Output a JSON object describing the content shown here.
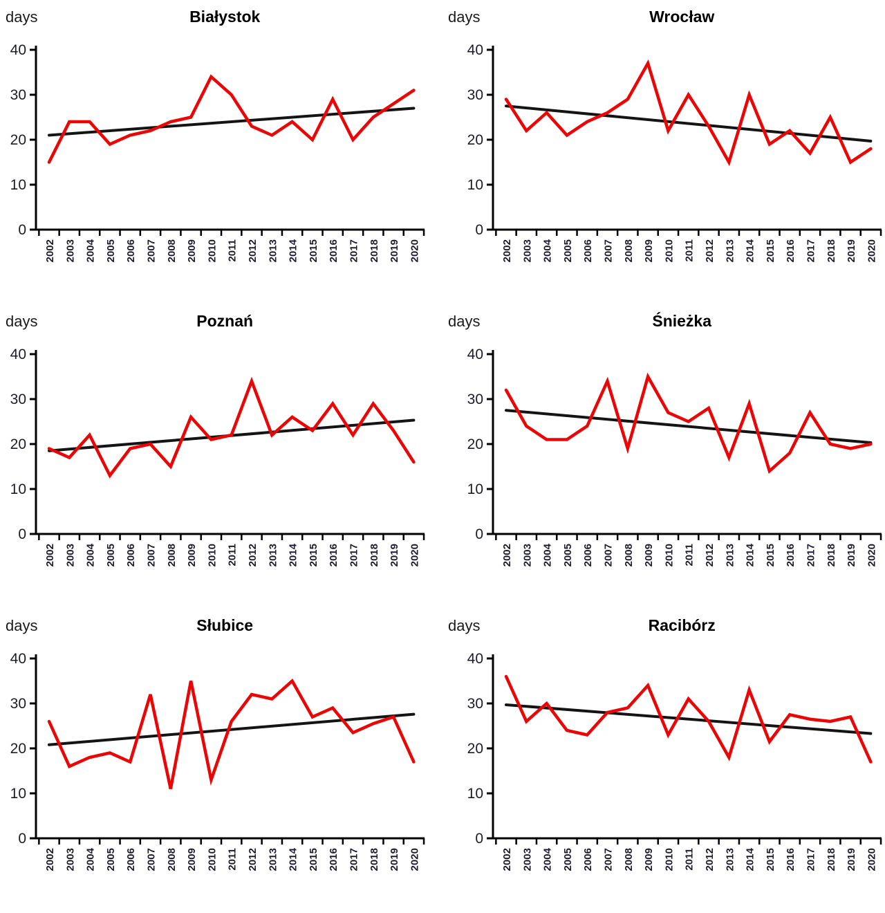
{
  "page": {
    "y_axis_unit": "days"
  },
  "chart_data": {
    "type": "line",
    "ylabel": "days",
    "yticks": [
      0,
      10,
      20,
      30,
      40
    ],
    "ylim": [
      0,
      40
    ],
    "grid": false,
    "legend": "none",
    "x_years": [
      2002,
      2003,
      2004,
      2005,
      2006,
      2007,
      2008,
      2009,
      2010,
      2011,
      2012,
      2013,
      2014,
      2015,
      2016,
      2017,
      2018,
      2019,
      2020
    ],
    "series_color": "#ec0505",
    "trend_color": "#141414",
    "charts": [
      {
        "title": "Białystok",
        "slug": "bialystok",
        "values": [
          15,
          24,
          24,
          19,
          21,
          22,
          24,
          25,
          34,
          30,
          23,
          21,
          24,
          20,
          29,
          20,
          25,
          28,
          31
        ],
        "trend_start": 21,
        "trend_end": 27
      },
      {
        "title": "Wrocław",
        "slug": "wroclaw",
        "values": [
          29,
          22,
          26,
          21,
          24,
          26,
          29,
          37,
          22,
          30,
          23,
          15,
          30,
          19,
          22,
          17,
          25,
          15,
          18
        ],
        "trend_start": 27.5,
        "trend_end": 19.7
      },
      {
        "title": "Poznań",
        "slug": "poznan",
        "values": [
          19,
          17,
          22,
          13,
          19,
          20,
          15,
          26,
          21,
          22,
          34,
          22,
          26,
          23,
          29,
          22,
          29,
          23,
          16
        ],
        "trend_start": 18.5,
        "trend_end": 25.3
      },
      {
        "title": "Śnieżka",
        "slug": "sniezka",
        "values": [
          32,
          24,
          21,
          21,
          24,
          34,
          19,
          35,
          27,
          25,
          28,
          17,
          29,
          14,
          18,
          27,
          20,
          19,
          20
        ],
        "trend_start": 27.5,
        "trend_end": 20.3
      },
      {
        "title": "Słubice",
        "slug": "slubice",
        "values": [
          26,
          16,
          18,
          19,
          17,
          32,
          11,
          35,
          13,
          26,
          32,
          31,
          35,
          27,
          29,
          23.5,
          25.5,
          27,
          17
        ],
        "trend_start": 20.8,
        "trend_end": 27.6
      },
      {
        "title": "Racibórz",
        "slug": "raciborz",
        "values": [
          36,
          26,
          30,
          24,
          23,
          28,
          29,
          34,
          23,
          31,
          26,
          18,
          33,
          21.5,
          27.5,
          26.5,
          26,
          27,
          17
        ],
        "trend_start": 29.7,
        "trend_end": 23.3
      }
    ]
  }
}
